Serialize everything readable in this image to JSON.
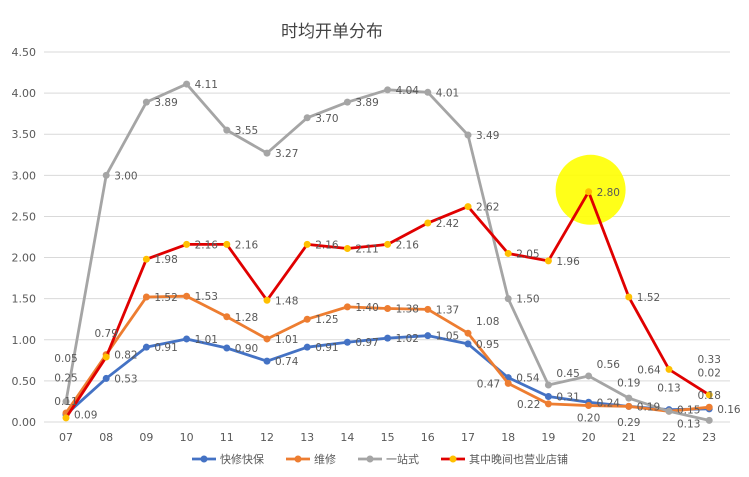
{
  "chart_data": {
    "type": "line",
    "title": "时均开单分布",
    "xlabel": "",
    "ylabel": "",
    "categories": [
      "07",
      "08",
      "09",
      "10",
      "11",
      "12",
      "13",
      "14",
      "15",
      "16",
      "17",
      "18",
      "19",
      "20",
      "21",
      "22",
      "23"
    ],
    "ylim": [
      0,
      4.5
    ],
    "yticks": [
      "0.00",
      "0.50",
      "1.00",
      "1.50",
      "2.00",
      "2.50",
      "3.00",
      "3.50",
      "4.00",
      "4.50"
    ],
    "grid": true,
    "legend_position": "bottom",
    "series": [
      {
        "name": "快修快保",
        "color": "#4472C4",
        "marker": "#4472C4",
        "values": [
          0.09,
          0.53,
          0.91,
          1.01,
          0.9,
          0.74,
          0.91,
          0.97,
          1.02,
          1.05,
          0.95,
          0.54,
          0.31,
          0.24,
          0.19,
          0.15,
          0.16
        ]
      },
      {
        "name": "维修",
        "color": "#ED7D31",
        "marker": "#ED7D31",
        "values": [
          0.11,
          0.82,
          1.52,
          1.53,
          1.28,
          1.01,
          1.25,
          1.4,
          1.38,
          1.37,
          1.08,
          0.47,
          0.22,
          0.2,
          0.19,
          0.13,
          0.18
        ]
      },
      {
        "name": "一站式",
        "color": "#A5A5A5",
        "marker": "#A5A5A5",
        "values": [
          0.25,
          3.0,
          3.89,
          4.11,
          3.55,
          3.27,
          3.7,
          3.89,
          4.04,
          4.01,
          3.49,
          1.5,
          0.45,
          0.56,
          0.29,
          0.13,
          0.02
        ]
      },
      {
        "name": "其中晚间也营业店铺",
        "color": "#E00000",
        "marker": "#FFC000",
        "values": [
          0.05,
          0.79,
          1.98,
          2.16,
          2.16,
          1.48,
          2.16,
          2.11,
          2.16,
          2.42,
          2.62,
          2.05,
          1.96,
          2.8,
          1.52,
          0.64,
          0.33
        ]
      }
    ],
    "highlight": {
      "series": "其中晚间也营业店铺",
      "category": "20",
      "color": "#FFFF00"
    }
  }
}
